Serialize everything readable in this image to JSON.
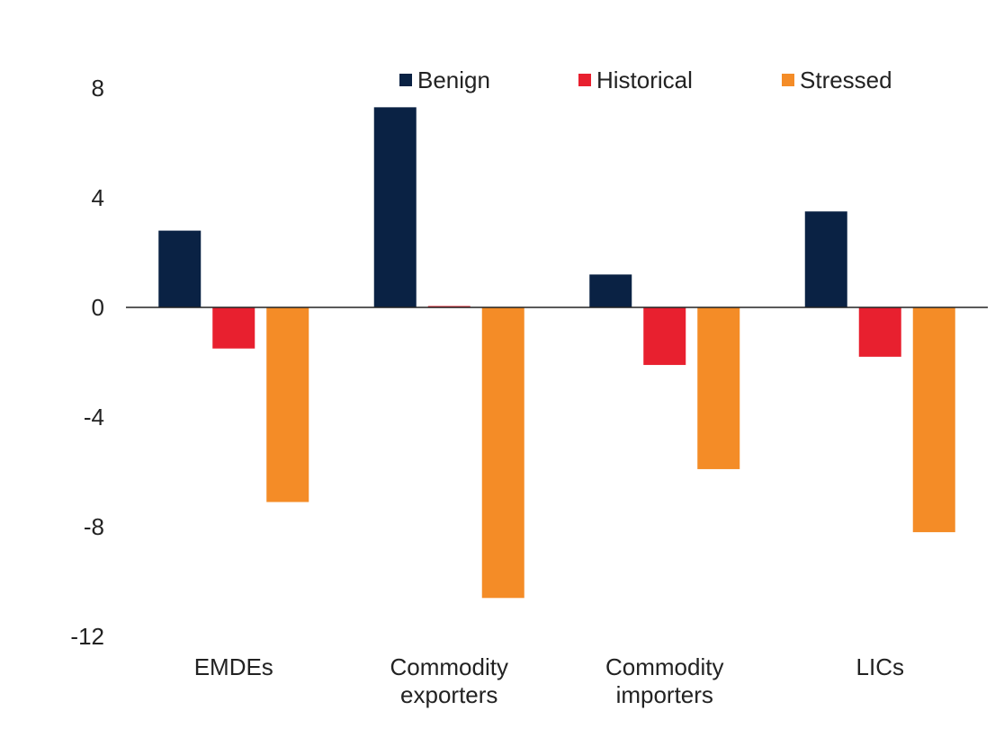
{
  "chart_data": {
    "type": "bar",
    "title": "",
    "xlabel": "",
    "ylabel": "",
    "ylim": [
      -12,
      8
    ],
    "yticks": [
      8,
      4,
      0,
      -4,
      -8,
      -12
    ],
    "grid": false,
    "legend_position": "top-center",
    "categories": [
      [
        "EMDEs"
      ],
      [
        "Commodity",
        "exporters"
      ],
      [
        "Commodity",
        "importers"
      ],
      [
        "LICs"
      ]
    ],
    "series": [
      {
        "name": "Benign",
        "color": "#0a2244",
        "values": [
          2.8,
          7.3,
          1.2,
          3.5
        ]
      },
      {
        "name": "Historical",
        "color": "#e8202f",
        "values": [
          -1.5,
          0.05,
          -2.1,
          -1.8
        ]
      },
      {
        "name": "Stressed",
        "color": "#f48c27",
        "values": [
          -7.1,
          -10.6,
          -5.9,
          -8.2
        ]
      }
    ]
  }
}
